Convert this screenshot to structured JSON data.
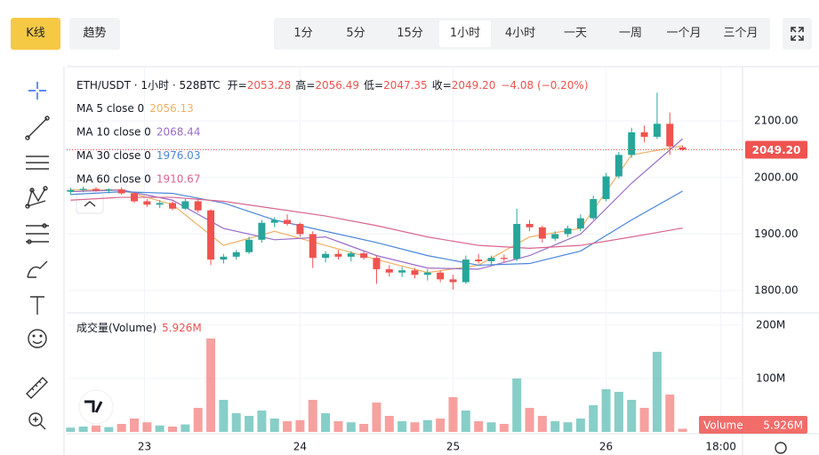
{
  "toolbar": {
    "tabs": [
      "K线",
      "趋势"
    ],
    "intervals": [
      "1分",
      "5分",
      "15分",
      "1小时",
      "4小时",
      "一天",
      "一周",
      "一个月",
      "三个月"
    ],
    "active_interval": 3
  },
  "chart_data": {
    "type": "candlestick",
    "title": "ETH/USDT · 1小时 · 528BTC",
    "legend": {
      "open_label": "开=",
      "open": "2053.28",
      "high_label": "高=",
      "high": "2056.49",
      "low_label": "低=",
      "low": "2047.35",
      "close_label": "收=",
      "close": "2049.20",
      "change": "−4.08 (−0.20%)"
    },
    "candles": [
      [
        1975,
        1982,
        1970,
        1978
      ],
      [
        1978,
        1984,
        1974,
        1980
      ],
      [
        1980,
        1983,
        1975,
        1977
      ],
      [
        1977,
        1981,
        1972,
        1979
      ],
      [
        1979,
        1983,
        1970,
        1972
      ],
      [
        1972,
        1974,
        1955,
        1958
      ],
      [
        1958,
        1962,
        1948,
        1952
      ],
      [
        1952,
        1960,
        1946,
        1955
      ],
      [
        1955,
        1958,
        1942,
        1945
      ],
      [
        1945,
        1962,
        1943,
        1958
      ],
      [
        1958,
        1962,
        1938,
        1942
      ],
      [
        1942,
        1944,
        1845,
        1855
      ],
      [
        1855,
        1865,
        1848,
        1860
      ],
      [
        1860,
        1872,
        1855,
        1868
      ],
      [
        1868,
        1895,
        1865,
        1890
      ],
      [
        1890,
        1925,
        1885,
        1920
      ],
      [
        1920,
        1930,
        1912,
        1925
      ],
      [
        1925,
        1935,
        1915,
        1918
      ],
      [
        1918,
        1920,
        1895,
        1900
      ],
      [
        1900,
        1905,
        1840,
        1858
      ],
      [
        1858,
        1870,
        1850,
        1865
      ],
      [
        1865,
        1872,
        1855,
        1860
      ],
      [
        1860,
        1870,
        1852,
        1866
      ],
      [
        1866,
        1870,
        1855,
        1858
      ],
      [
        1858,
        1862,
        1812,
        1838
      ],
      [
        1838,
        1845,
        1825,
        1832
      ],
      [
        1832,
        1842,
        1824,
        1836
      ],
      [
        1836,
        1840,
        1822,
        1828
      ],
      [
        1828,
        1838,
        1818,
        1832
      ],
      [
        1832,
        1836,
        1815,
        1820
      ],
      [
        1820,
        1828,
        1802,
        1815
      ],
      [
        1815,
        1862,
        1812,
        1855
      ],
      [
        1855,
        1865,
        1848,
        1852
      ],
      [
        1852,
        1862,
        1846,
        1858
      ],
      [
        1858,
        1864,
        1850,
        1856
      ],
      [
        1856,
        1945,
        1852,
        1918
      ],
      [
        1918,
        1925,
        1905,
        1912
      ],
      [
        1912,
        1915,
        1885,
        1892
      ],
      [
        1892,
        1905,
        1888,
        1900
      ],
      [
        1900,
        1915,
        1895,
        1910
      ],
      [
        1910,
        1935,
        1905,
        1928
      ],
      [
        1928,
        1968,
        1925,
        1962
      ],
      [
        1962,
        2008,
        1958,
        2002
      ],
      [
        2002,
        2045,
        1998,
        2040
      ],
      [
        2040,
        2088,
        2035,
        2080
      ],
      [
        2080,
        2092,
        2062,
        2072
      ],
      [
        2072,
        2150,
        2068,
        2095
      ],
      [
        2095,
        2115,
        2040,
        2055
      ],
      [
        2053.28,
        2056.49,
        2047.35,
        2049.2
      ]
    ],
    "series": [
      {
        "name": "MA 5 close 0",
        "color": "#f0b165",
        "x": [
          0,
          4,
          8,
          12,
          16,
          20,
          24,
          28,
          32,
          36,
          40,
          44,
          48
        ],
        "values": [
          1978,
          1978,
          1952,
          1880,
          1905,
          1880,
          1855,
          1832,
          1845,
          1895,
          1910,
          2040,
          2056.13
        ]
      },
      {
        "name": "MA 10 close 0",
        "color": "#9b6cc8",
        "x": [
          0,
          4,
          8,
          12,
          16,
          20,
          24,
          28,
          32,
          36,
          40,
          44,
          48
        ],
        "values": [
          1975,
          1978,
          1960,
          1910,
          1890,
          1895,
          1862,
          1840,
          1838,
          1862,
          1900,
          1990,
          2068.44
        ]
      },
      {
        "name": "MA 30 close 0",
        "color": "#4a86d8",
        "x": [
          0,
          4,
          8,
          12,
          16,
          20,
          24,
          28,
          32,
          36,
          40,
          44,
          48
        ],
        "values": [
          1970,
          1975,
          1972,
          1955,
          1925,
          1905,
          1885,
          1862,
          1845,
          1848,
          1870,
          1925,
          1976.03
        ]
      },
      {
        "name": "MA 60 close 0",
        "color": "#d9668e",
        "x": [
          0,
          4,
          8,
          12,
          16,
          20,
          24,
          28,
          32,
          36,
          40,
          44,
          48
        ],
        "values": [
          1960,
          1965,
          1965,
          1958,
          1945,
          1932,
          1915,
          1895,
          1880,
          1875,
          1880,
          1895,
          1910.67
        ]
      }
    ],
    "colors": {
      "up": "#26a69a",
      "down": "#ef5350"
    },
    "xlim": [
      -0.3,
      52.7
    ],
    "xticks": [
      {
        "value": 5.8,
        "label": "23"
      },
      {
        "value": 18,
        "label": "24"
      },
      {
        "value": 30,
        "label": "25"
      },
      {
        "value": 42,
        "label": "26"
      },
      {
        "value": 51,
        "label": "18:00"
      }
    ],
    "ylim": [
      1764,
      2196
    ],
    "yticks": [
      {
        "value": 1800,
        "label": "1800.00"
      },
      {
        "value": 1900,
        "label": "1900.00"
      },
      {
        "value": 2000,
        "label": "2000.00"
      },
      {
        "value": 2100,
        "label": "2100.00"
      }
    ],
    "last_price_label": "2049.20",
    "grid": true,
    "volume": {
      "title": "成交量(Volume)",
      "badge": "Volume",
      "last_label": "5.926M",
      "values": [
        8,
        10,
        12,
        9,
        15,
        25,
        18,
        12,
        10,
        14,
        45,
        175,
        60,
        35,
        30,
        40,
        25,
        20,
        22,
        60,
        35,
        20,
        18,
        15,
        55,
        30,
        20,
        18,
        22,
        25,
        65,
        40,
        20,
        18,
        15,
        100,
        45,
        30,
        20,
        18,
        25,
        50,
        80,
        75,
        60,
        45,
        150,
        70,
        5.926
      ],
      "ylim": [
        0,
        218
      ],
      "yticks": [
        {
          "value": 100,
          "label": "100M"
        },
        {
          "value": 200,
          "label": "200M"
        }
      ]
    }
  }
}
